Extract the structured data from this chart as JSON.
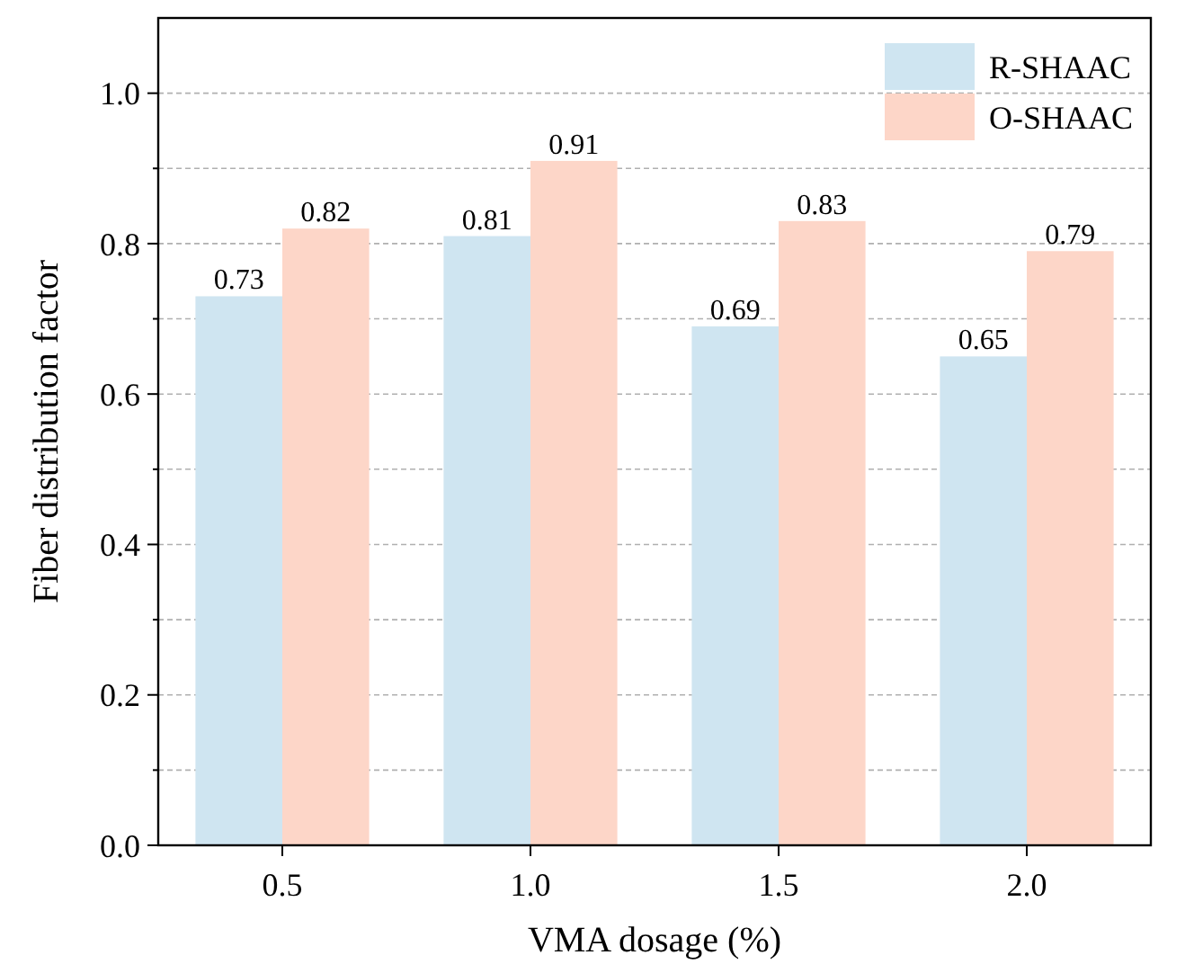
{
  "chart_data": {
    "type": "bar",
    "xlabel": "VMA dosage (%)",
    "ylabel": "Fiber distribution factor",
    "categories": [
      "0.5",
      "1.0",
      "1.5",
      "2.0"
    ],
    "series": [
      {
        "name": "R-SHAAC",
        "color": "#cfe5f1",
        "values": [
          0.73,
          0.81,
          0.69,
          0.65
        ]
      },
      {
        "name": "O-SHAAC",
        "color": "#fdd6c8",
        "values": [
          0.82,
          0.91,
          0.83,
          0.79
        ]
      }
    ],
    "ylim": [
      0,
      1.1
    ],
    "yticks": [
      {
        "value": 0,
        "label": "0.0"
      },
      {
        "value": 0.1,
        "label": null
      },
      {
        "value": 0.2,
        "label": "0.2"
      },
      {
        "value": 0.3,
        "label": null
      },
      {
        "value": 0.4,
        "label": "0.4"
      },
      {
        "value": 0.5,
        "label": null
      },
      {
        "value": 0.6,
        "label": "0.6"
      },
      {
        "value": 0.7,
        "label": null
      },
      {
        "value": 0.8,
        "label": "0.8"
      },
      {
        "value": 0.9,
        "label": null
      },
      {
        "value": 1.0,
        "label": "1.0"
      }
    ],
    "grid": "y",
    "legend": "top right",
    "data_labels": true
  }
}
